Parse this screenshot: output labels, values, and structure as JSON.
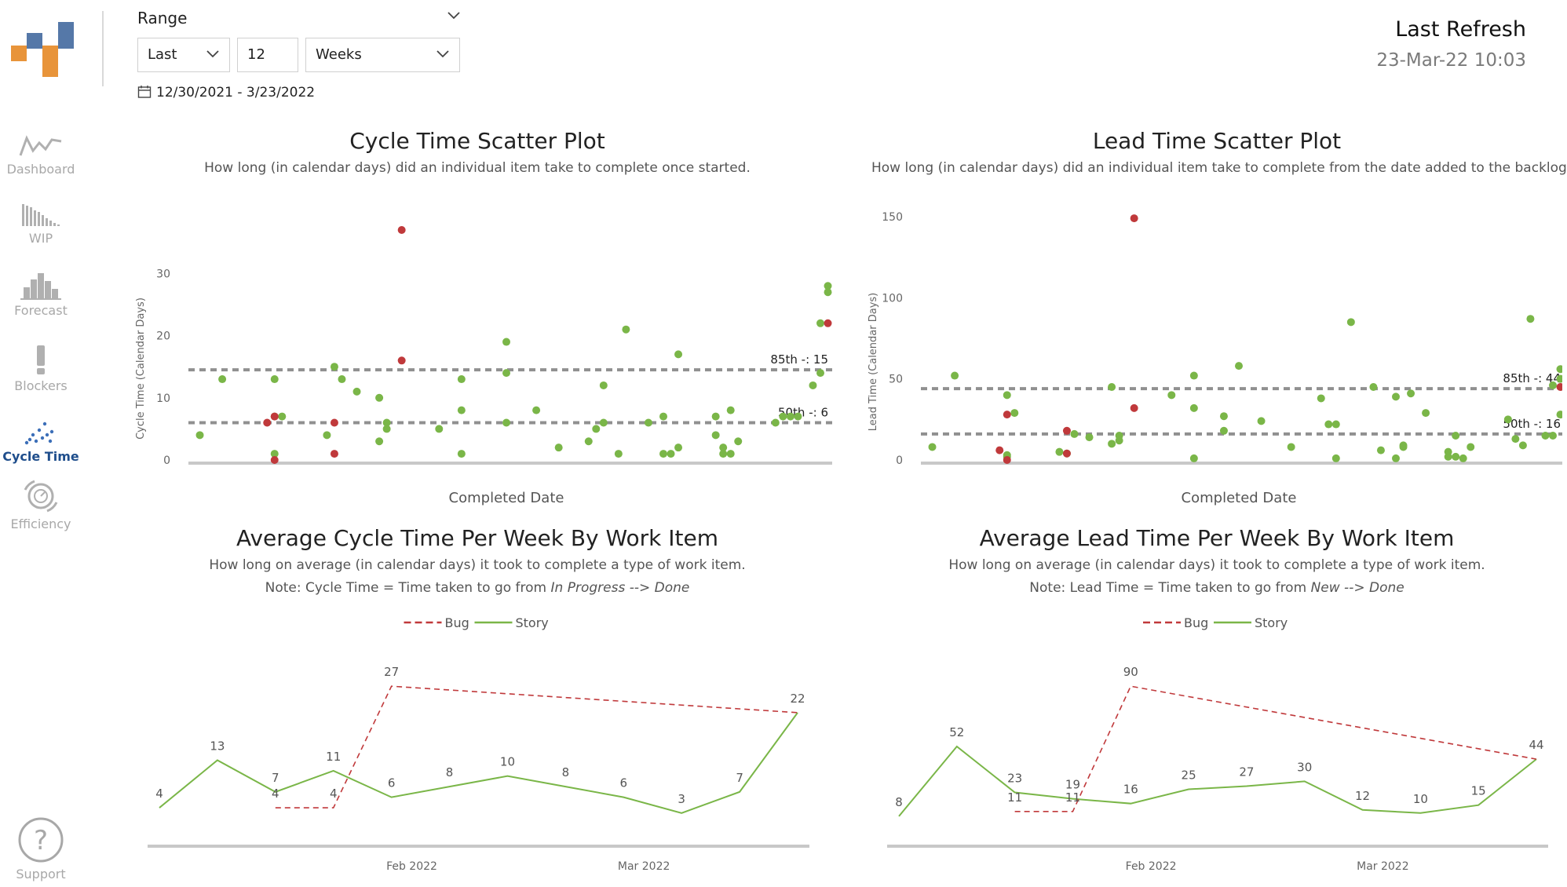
{
  "sidebar": {
    "items": [
      {
        "label": "Dashboard",
        "icon": "dashboard-icon"
      },
      {
        "label": "WIP",
        "icon": "wip-icon"
      },
      {
        "label": "Forecast",
        "icon": "forecast-icon"
      },
      {
        "label": "Blockers",
        "icon": "blockers-icon"
      },
      {
        "label": "Cycle Time",
        "icon": "cycle-time-icon"
      },
      {
        "label": "Efficiency",
        "icon": "efficiency-icon"
      }
    ],
    "support_label": "Support",
    "active_item": "Cycle Time"
  },
  "range": {
    "label": "Range",
    "mode": "Last",
    "count": "12",
    "unit": "Weeks",
    "dates": "12/30/2021 - 3/23/2022"
  },
  "refresh": {
    "title": "Last Refresh",
    "time": "23-Mar-22 10:03"
  },
  "colors": {
    "story": "#7ab648",
    "bug": "#c0393b",
    "percentile": "#909090",
    "axis": "#c8c8c8",
    "active_nav": "#1f4e8c"
  },
  "chart_data": [
    {
      "id": "cycle-scatter",
      "type": "scatter",
      "title": "Cycle Time Scatter Plot",
      "subtitle": "How long (in calendar days) did an individual item take to complete once started.",
      "xlabel": "Completed Date",
      "ylabel": "Cycle Time (Calendar Days)",
      "x_domain": [
        0,
        84
      ],
      "ylim": [
        0,
        37
      ],
      "yticks": [
        0,
        10,
        20,
        30
      ],
      "percentiles": [
        {
          "label": "85th -: 15",
          "value": 14.5
        },
        {
          "label": "50th -: 6",
          "value": 6
        }
      ],
      "stories": [
        [
          1,
          4
        ],
        [
          4,
          13
        ],
        [
          11,
          7
        ],
        [
          11,
          1
        ],
        [
          11,
          13
        ],
        [
          12,
          7
        ],
        [
          18,
          4
        ],
        [
          19,
          15
        ],
        [
          20,
          13
        ],
        [
          22,
          11
        ],
        [
          25,
          3
        ],
        [
          25,
          10
        ],
        [
          26,
          5
        ],
        [
          26,
          6
        ],
        [
          33,
          5
        ],
        [
          36,
          13
        ],
        [
          36,
          8
        ],
        [
          36,
          1
        ],
        [
          42,
          6
        ],
        [
          42,
          14
        ],
        [
          42,
          19
        ],
        [
          46,
          8
        ],
        [
          49,
          2
        ],
        [
          53,
          3
        ],
        [
          54,
          5
        ],
        [
          55,
          12
        ],
        [
          55,
          6
        ],
        [
          57,
          1
        ],
        [
          58,
          21
        ],
        [
          61,
          6
        ],
        [
          63,
          7
        ],
        [
          63,
          1
        ],
        [
          64,
          1
        ],
        [
          65,
          17
        ],
        [
          65,
          2
        ],
        [
          70,
          4
        ],
        [
          70,
          7
        ],
        [
          71,
          1
        ],
        [
          71,
          2
        ],
        [
          72,
          1
        ],
        [
          73,
          3
        ],
        [
          72,
          8
        ],
        [
          78,
          6
        ],
        [
          79,
          7
        ],
        [
          80,
          7
        ],
        [
          81,
          7
        ],
        [
          83,
          12
        ],
        [
          84,
          14
        ],
        [
          84,
          22
        ],
        [
          85,
          27
        ],
        [
          85,
          28
        ]
      ],
      "bugs": [
        [
          10,
          6
        ],
        [
          11,
          7
        ],
        [
          11,
          0
        ],
        [
          19,
          6
        ],
        [
          19,
          1
        ],
        [
          28,
          16
        ],
        [
          28,
          37
        ],
        [
          85,
          22
        ]
      ]
    },
    {
      "id": "lead-scatter",
      "type": "scatter",
      "title": "Lead Time Scatter Plot",
      "subtitle": "How long (in calendar days) did an individual item take to complete from the date added to the backlog.",
      "xlabel": "Completed Date",
      "ylabel": "Lead Time (Calendar Days)",
      "x_domain": [
        0,
        84
      ],
      "ylim": [
        0,
        150
      ],
      "yticks": [
        0,
        50,
        100,
        150
      ],
      "percentiles": [
        {
          "label": "85th -: 44",
          "value": 44
        },
        {
          "label": "50th -: 16",
          "value": 16
        }
      ],
      "stories": [
        [
          1,
          8
        ],
        [
          4,
          52
        ],
        [
          11,
          40
        ],
        [
          11,
          3
        ],
        [
          11,
          2
        ],
        [
          12,
          29
        ],
        [
          18,
          5
        ],
        [
          19,
          4
        ],
        [
          20,
          16
        ],
        [
          22,
          14
        ],
        [
          25,
          45
        ],
        [
          25,
          10
        ],
        [
          26,
          15
        ],
        [
          26,
          12
        ],
        [
          33,
          40
        ],
        [
          36,
          52
        ],
        [
          36,
          32
        ],
        [
          36,
          1
        ],
        [
          40,
          18
        ],
        [
          40,
          27
        ],
        [
          42,
          58
        ],
        [
          45,
          24
        ],
        [
          49,
          8
        ],
        [
          53,
          38
        ],
        [
          54,
          22
        ],
        [
          55,
          22
        ],
        [
          55,
          1
        ],
        [
          57,
          85
        ],
        [
          60,
          45
        ],
        [
          61,
          6
        ],
        [
          63,
          39
        ],
        [
          63,
          1
        ],
        [
          64,
          8
        ],
        [
          64,
          9
        ],
        [
          65,
          41
        ],
        [
          67,
          29
        ],
        [
          70,
          5
        ],
        [
          70,
          2
        ],
        [
          71,
          15
        ],
        [
          71,
          2
        ],
        [
          72,
          1
        ],
        [
          73,
          8
        ],
        [
          78,
          25
        ],
        [
          79,
          13
        ],
        [
          80,
          9
        ],
        [
          81,
          87
        ],
        [
          83,
          15
        ],
        [
          84,
          15
        ],
        [
          84,
          46
        ],
        [
          85,
          50
        ],
        [
          85,
          56
        ],
        [
          85,
          28
        ]
      ],
      "bugs": [
        [
          10,
          6
        ],
        [
          11,
          28
        ],
        [
          11,
          0
        ],
        [
          19,
          18
        ],
        [
          19,
          4
        ],
        [
          28,
          32
        ],
        [
          28,
          149
        ],
        [
          85,
          45
        ]
      ]
    },
    {
      "id": "cycle-avg",
      "type": "line",
      "title": "Average Cycle Time Per Week By Work Item",
      "subtitle": "How long on average (in calendar days) it took to complete a type of work item.",
      "note_prefix": "Note: Cycle Time = Time taken to go from ",
      "note_from": "In Progress",
      "note_arrow": " --> ",
      "note_to": "Done",
      "xlabel": "",
      "ylim": [
        0,
        30
      ],
      "x_domain": [
        0,
        11
      ],
      "x_ticks": [
        {
          "label": "Feb 2022",
          "x": 4.35
        },
        {
          "label": "Mar 2022",
          "x": 8.35
        }
      ],
      "legend": [
        "Bug",
        "Story"
      ],
      "series": [
        {
          "name": "Story",
          "x": [
            0,
            1,
            2,
            3,
            4,
            5,
            6,
            7,
            8,
            9,
            10,
            11
          ],
          "values": [
            4,
            13,
            7,
            11,
            6,
            8,
            10,
            8,
            6,
            3,
            7,
            22
          ],
          "labels": [
            "4",
            "13",
            "7",
            "11",
            "6",
            "8",
            "10",
            "8",
            "6",
            "3",
            "7",
            "22"
          ]
        },
        {
          "name": "Bug",
          "x": [
            2,
            3,
            4,
            11
          ],
          "values": [
            4,
            4,
            27,
            22
          ],
          "labels": [
            "4",
            "4",
            "27",
            ""
          ]
        }
      ]
    },
    {
      "id": "lead-avg",
      "type": "line",
      "title": "Average Lead Time Per Week By Work Item",
      "subtitle": "How long on average (in calendar days) it took to complete a type of work item.",
      "note_prefix": "Note: Lead Time = Time taken to go from ",
      "note_from": "New",
      "note_arrow": " --> ",
      "note_to": "Done",
      "xlabel": "",
      "ylim": [
        0,
        100
      ],
      "x_domain": [
        0,
        11
      ],
      "x_ticks": [
        {
          "label": "Feb 2022",
          "x": 4.35
        },
        {
          "label": "Mar 2022",
          "x": 8.35
        }
      ],
      "legend": [
        "Bug",
        "Story"
      ],
      "series": [
        {
          "name": "Story",
          "x": [
            0,
            1,
            2,
            3,
            4,
            5,
            6,
            7,
            8,
            9,
            10,
            11
          ],
          "values": [
            8,
            52,
            23,
            19,
            16,
            25,
            27,
            30,
            12,
            10,
            15,
            44
          ],
          "labels": [
            "8",
            "52",
            "23",
            "19",
            "16",
            "25",
            "27",
            "30",
            "12",
            "10",
            "15",
            "44"
          ]
        },
        {
          "name": "Bug",
          "x": [
            2,
            3,
            4,
            11
          ],
          "values": [
            11,
            11,
            90,
            44
          ],
          "labels": [
            "11",
            "11",
            "90",
            ""
          ]
        }
      ]
    }
  ]
}
